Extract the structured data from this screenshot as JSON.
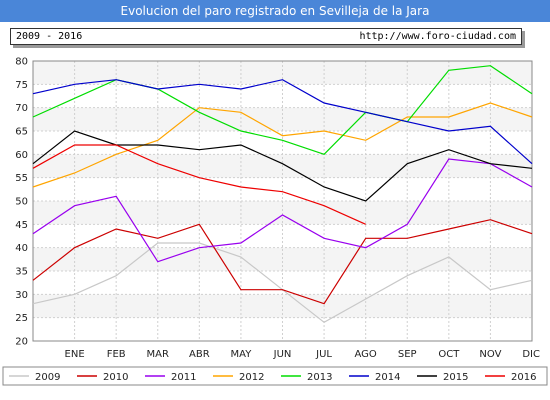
{
  "header": {
    "title": "Evolucion del paro registrado en Sevilleja de la Jara",
    "range": "2009 - 2016",
    "url": "http://www.foro-ciudad.com"
  },
  "chart_data": {
    "type": "line",
    "title": "Evolucion del paro registrado en Sevilleja de la Jara",
    "categories": [
      "",
      "ENE",
      "FEB",
      "MAR",
      "ABR",
      "MAY",
      "JUN",
      "JUL",
      "AGO",
      "SEP",
      "OCT",
      "NOV",
      "DIC"
    ],
    "ylim": [
      20,
      80
    ],
    "yticks": [
      20,
      25,
      30,
      35,
      40,
      45,
      50,
      55,
      60,
      65,
      70,
      75,
      80
    ],
    "grid": true,
    "legend_position": "bottom",
    "series": [
      {
        "name": "2009",
        "color": "#c8c8c8",
        "values": [
          28,
          30,
          34,
          41,
          41,
          38,
          31,
          24,
          29,
          34,
          38,
          31,
          33
        ]
      },
      {
        "name": "2010",
        "color": "#cc0000",
        "values": [
          33,
          40,
          44,
          42,
          45,
          31,
          31,
          28,
          42,
          42,
          44,
          46,
          43
        ]
      },
      {
        "name": "2011",
        "color": "#9900ee",
        "values": [
          43,
          49,
          51,
          37,
          40,
          41,
          47,
          42,
          40,
          45,
          59,
          58,
          53
        ]
      },
      {
        "name": "2012",
        "color": "#ffa500",
        "values": [
          53,
          56,
          60,
          63,
          70,
          69,
          64,
          65,
          63,
          68,
          68,
          71,
          68
        ]
      },
      {
        "name": "2013",
        "color": "#00dd00",
        "values": [
          68,
          72,
          76,
          74,
          69,
          65,
          63,
          60,
          69,
          67,
          78,
          79,
          73
        ]
      },
      {
        "name": "2014",
        "color": "#0000cc",
        "values": [
          73,
          75,
          76,
          74,
          75,
          74,
          76,
          71,
          69,
          67,
          65,
          66,
          58
        ]
      },
      {
        "name": "2015",
        "color": "#000000",
        "values": [
          58,
          65,
          62,
          62,
          61,
          62,
          58,
          53,
          50,
          58,
          61,
          58,
          57
        ]
      },
      {
        "name": "2016",
        "color": "#ee0000",
        "values": [
          57,
          62,
          62,
          58,
          55,
          53,
          52,
          49,
          45,
          null,
          null,
          null,
          null
        ]
      }
    ]
  }
}
